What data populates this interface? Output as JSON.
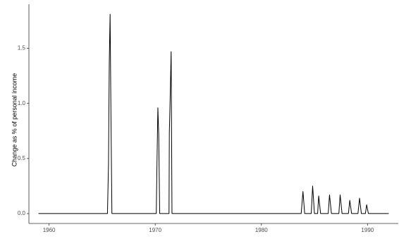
{
  "chart_data": {
    "type": "line",
    "title": "",
    "xlabel": "",
    "ylabel": "Change as % of personal income",
    "xlim": [
      1958.1,
      1992.9
    ],
    "ylim": [
      -0.09,
      1.9
    ],
    "x_ticks": [
      1960,
      1970,
      1980,
      1990
    ],
    "x_tick_labels": [
      "1960",
      "1970",
      "1980",
      "1990"
    ],
    "y_ticks": [
      0.0,
      0.5,
      1.0,
      1.5
    ],
    "y_tick_labels": [
      "0.0",
      "0.5",
      "1.0",
      "1.5"
    ],
    "grid": false,
    "colors": {
      "line": "#000000",
      "axis": "#333333",
      "tick_label": "#4d4d4d"
    },
    "series": [
      {
        "x": [
          1959.0,
          1965.5,
          1965.6,
          1965.67,
          1965.75,
          1965.83,
          1965.92,
          1966.0,
          1966.08,
          1970.1,
          1970.17,
          1970.25,
          1970.33,
          1970.42,
          1971.3,
          1971.33,
          1971.42,
          1971.5,
          1971.58,
          1971.67,
          1983.75,
          1983.92,
          1984.08,
          1984.7,
          1984.83,
          1985.0,
          1985.3,
          1985.4,
          1985.58,
          1986.3,
          1986.42,
          1986.6,
          1987.3,
          1987.42,
          1987.6,
          1988.2,
          1988.33,
          1988.5,
          1989.1,
          1989.25,
          1989.42,
          1989.8,
          1989.92,
          1990.08,
          1992.0
        ],
        "y": [
          0.0,
          0.0,
          0.45,
          1.36,
          1.81,
          0.9,
          0.0,
          0.0,
          0.0,
          0.0,
          0.48,
          0.96,
          0.72,
          0.0,
          0.0,
          0.73,
          1.1,
          1.47,
          0.0,
          0.0,
          0.0,
          0.2,
          0.0,
          0.0,
          0.25,
          0.0,
          0.0,
          0.16,
          0.0,
          0.0,
          0.17,
          0.0,
          0.0,
          0.17,
          0.0,
          0.0,
          0.12,
          0.0,
          0.0,
          0.14,
          0.0,
          0.0,
          0.08,
          0.0,
          0.0
        ]
      }
    ]
  }
}
